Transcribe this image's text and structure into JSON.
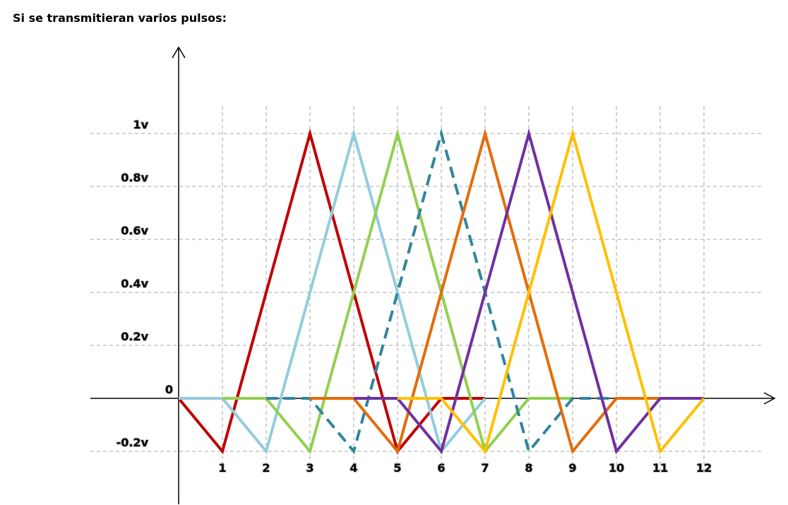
{
  "page": {
    "heading": "Si se transmitieran varios pulsos:"
  },
  "chart_data": {
    "type": "line",
    "title": "",
    "xlabel": "",
    "ylabel": "",
    "xlim": [
      0,
      12
    ],
    "ylim": [
      -0.2,
      1
    ],
    "grid": true,
    "x_ticks": [
      {
        "value": 1,
        "label": "1"
      },
      {
        "value": 2,
        "label": "2"
      },
      {
        "value": 3,
        "label": "3"
      },
      {
        "value": 4,
        "label": "4"
      },
      {
        "value": 5,
        "label": "5"
      },
      {
        "value": 6,
        "label": "6"
      },
      {
        "value": 7,
        "label": "7"
      },
      {
        "value": 8,
        "label": "8"
      },
      {
        "value": 9,
        "label": "9"
      },
      {
        "value": 10,
        "label": "10"
      },
      {
        "value": 11,
        "label": "11"
      },
      {
        "value": 12,
        "label": "12"
      }
    ],
    "y_ticks": [
      {
        "value": 1,
        "label": "1v"
      },
      {
        "value": 0.8,
        "label": "0.8v"
      },
      {
        "value": 0.6,
        "label": "0.6v"
      },
      {
        "value": 0.4,
        "label": "0.4v"
      },
      {
        "value": 0.2,
        "label": "0.2v"
      },
      {
        "value": 0,
        "label": "0"
      },
      {
        "value": -0.2,
        "label": "-0.2v"
      }
    ],
    "series": [
      {
        "color": "#C00000",
        "dashed": false,
        "x": [
          0,
          1,
          3,
          5,
          6,
          7
        ],
        "y": [
          0,
          -0.2,
          1,
          -0.2,
          0,
          0
        ]
      },
      {
        "color": "#92CDDC",
        "dashed": false,
        "x": [
          0,
          1,
          2,
          4,
          6,
          7
        ],
        "y": [
          0,
          0,
          -0.2,
          1,
          -0.2,
          0
        ]
      },
      {
        "color": "#92D050",
        "dashed": false,
        "x": [
          1,
          2,
          3,
          5,
          7,
          8,
          9
        ],
        "y": [
          0,
          0,
          -0.2,
          1,
          -0.2,
          0,
          0
        ]
      },
      {
        "color": "#31859C",
        "dashed": true,
        "x": [
          2,
          3,
          4,
          6,
          8,
          9,
          10
        ],
        "y": [
          0,
          0,
          -0.2,
          1,
          -0.2,
          0,
          0
        ]
      },
      {
        "color": "#E46C0A",
        "dashed": false,
        "x": [
          3,
          4,
          5,
          7,
          9,
          10,
          11
        ],
        "y": [
          0,
          0,
          -0.2,
          1,
          -0.2,
          0,
          0
        ]
      },
      {
        "color": "#7030A0",
        "dashed": false,
        "x": [
          4,
          5,
          6,
          8,
          10,
          11,
          12
        ],
        "y": [
          0,
          0,
          -0.2,
          1,
          -0.2,
          0,
          0
        ]
      },
      {
        "color": "#FFC000",
        "dashed": false,
        "x": [
          5,
          6,
          7,
          9,
          11,
          12
        ],
        "y": [
          0,
          0,
          -0.2,
          1,
          -0.2,
          0
        ]
      }
    ]
  }
}
